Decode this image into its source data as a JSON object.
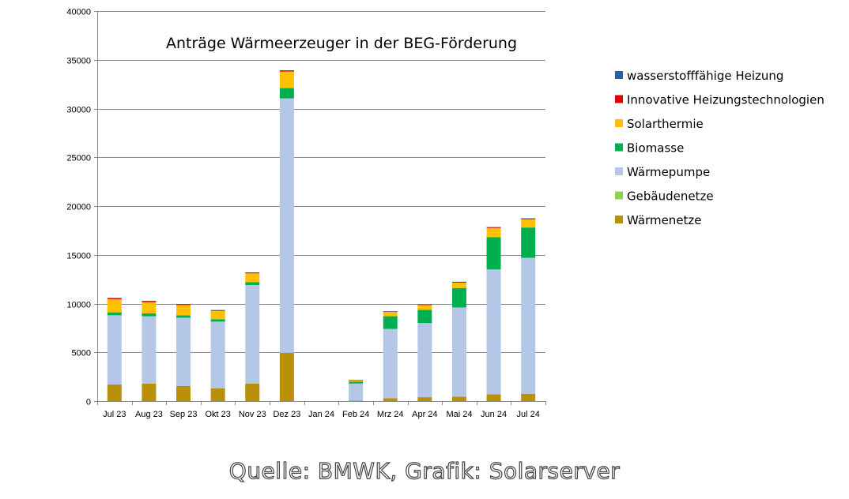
{
  "chart_data": {
    "type": "bar",
    "stacked": true,
    "title": "Anträge Wärmeerzeuger in der BEG-Förderung",
    "categories": [
      "Jul 23",
      "Aug 23",
      "Sep 23",
      "Okt 23",
      "Nov 23",
      "Dez 23",
      "Jan 24",
      "Feb 24",
      "Mrz 24",
      "Apr 24",
      "Mai 24",
      "Jun 24",
      "Jul 24"
    ],
    "ylim": [
      0,
      40000
    ],
    "yticks": [
      0,
      5000,
      10000,
      15000,
      20000,
      25000,
      30000,
      35000,
      40000
    ],
    "grid": true,
    "legend_position": "right",
    "series": [
      {
        "name": "Wärmenetze",
        "color": "#b8900a",
        "values": [
          1700,
          1800,
          1550,
          1300,
          1800,
          4950,
          0,
          50,
          300,
          400,
          450,
          700,
          750
        ]
      },
      {
        "name": "Gebäudenetze",
        "color": "#92d050",
        "values": [
          0,
          0,
          0,
          0,
          0,
          0,
          0,
          0,
          0,
          0,
          0,
          0,
          0
        ]
      },
      {
        "name": "Wärmepumpe",
        "color": "#b4c7e7",
        "values": [
          7100,
          6900,
          7000,
          6850,
          10100,
          26100,
          0,
          1750,
          7100,
          7600,
          9150,
          12800,
          13950
        ]
      },
      {
        "name": "Biomasse",
        "color": "#00b050",
        "values": [
          300,
          300,
          250,
          250,
          300,
          1050,
          0,
          200,
          1300,
          1350,
          2000,
          3300,
          3100
        ]
      },
      {
        "name": "Solarthermie",
        "color": "#ffc000",
        "values": [
          1350,
          1150,
          1050,
          850,
          900,
          1700,
          0,
          150,
          450,
          500,
          550,
          950,
          850
        ]
      },
      {
        "name": "Innovative Heizungstechnologien",
        "color": "#e00000",
        "values": [
          100,
          100,
          80,
          70,
          80,
          100,
          0,
          10,
          50,
          60,
          80,
          80,
          80
        ]
      },
      {
        "name": "wasserstofffähige Heizung",
        "color": "#2e5fa3",
        "values": [
          30,
          30,
          20,
          20,
          20,
          30,
          0,
          0,
          10,
          10,
          10,
          20,
          20
        ]
      }
    ],
    "legend_order": [
      "wasserstofffähige Heizung",
      "Innovative Heizungstechnologien",
      "Solarthermie",
      "Biomasse",
      "Wärmepumpe",
      "Gebäudenetze",
      "Wärmenetze"
    ]
  },
  "source": "Quelle: BMWK, Grafik: Solarserver"
}
